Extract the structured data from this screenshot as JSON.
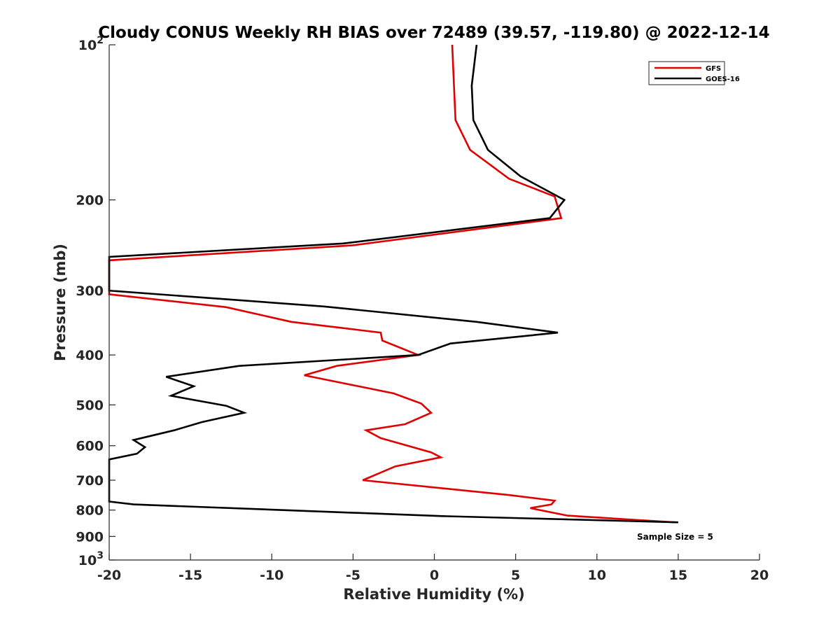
{
  "chart_data": {
    "type": "line",
    "title": "Cloudy CONUS Weekly RH BIAS over 72489 (39.57, -119.80) @ 2022-12-14",
    "xlabel": "Relative Humidity (%)",
    "ylabel": "Pressure (mb)",
    "xlim": [
      -20,
      20
    ],
    "ylim": [
      100,
      1000
    ],
    "y_scale": "log",
    "y_reversed": true,
    "grid": false,
    "legend_position": "top-right",
    "xticks": [
      -20,
      -15,
      -10,
      -5,
      0,
      5,
      10,
      15,
      20
    ],
    "xtick_labels": [
      "-20",
      "-15",
      "-10",
      "-5",
      "0",
      "5",
      "10",
      "15",
      "20"
    ],
    "yticks": [
      100,
      200,
      300,
      400,
      500,
      600,
      700,
      800,
      900,
      1000
    ],
    "ytick_labels": [
      {
        "base": "10",
        "exp": "2"
      },
      {
        "base": "200",
        "exp": ""
      },
      {
        "base": "300",
        "exp": ""
      },
      {
        "base": "400",
        "exp": ""
      },
      {
        "base": "500",
        "exp": ""
      },
      {
        "base": "600",
        "exp": ""
      },
      {
        "base": "700",
        "exp": ""
      },
      {
        "base": "800",
        "exp": ""
      },
      {
        "base": "900",
        "exp": ""
      },
      {
        "base": "10",
        "exp": "3"
      }
    ],
    "annotation": "Sample Size = 5",
    "series": [
      {
        "name": "GFS",
        "color": "#e00000",
        "points": [
          [
            1.1,
            100
          ],
          [
            1.3,
            140
          ],
          [
            2.2,
            160
          ],
          [
            4.6,
            182
          ],
          [
            7.4,
            197
          ],
          [
            7.8,
            217
          ],
          [
            -5.0,
            245
          ],
          [
            -20.0,
            262
          ],
          [
            -20.0,
            305
          ],
          [
            -12.8,
            323
          ],
          [
            -8.8,
            345
          ],
          [
            -3.3,
            362
          ],
          [
            -3.2,
            375
          ],
          [
            -1.0,
            400
          ],
          [
            -6.0,
            420
          ],
          [
            -8.0,
            438
          ],
          [
            -2.5,
            475
          ],
          [
            -0.8,
            497
          ],
          [
            -0.2,
            518
          ],
          [
            -1.8,
            545
          ],
          [
            -4.2,
            560
          ],
          [
            -3.3,
            580
          ],
          [
            -0.2,
            618
          ],
          [
            0.4,
            632
          ],
          [
            -2.4,
            658
          ],
          [
            -4.4,
            700
          ],
          [
            4.6,
            748
          ],
          [
            7.4,
            767
          ],
          [
            7.2,
            780
          ],
          [
            5.9,
            793
          ],
          [
            8.2,
            820
          ],
          [
            14.8,
            845
          ]
        ]
      },
      {
        "name": "GOES-16",
        "color": "#000000",
        "points": [
          [
            2.6,
            100
          ],
          [
            2.3,
            120
          ],
          [
            2.4,
            140
          ],
          [
            3.3,
            160
          ],
          [
            5.3,
            180
          ],
          [
            8.0,
            200
          ],
          [
            7.1,
            217
          ],
          [
            -5.6,
            243
          ],
          [
            -20.0,
            258
          ],
          [
            -20.0,
            300
          ],
          [
            -6.8,
            322
          ],
          [
            2.6,
            345
          ],
          [
            7.6,
            362
          ],
          [
            1.0,
            380
          ],
          [
            -1.0,
            400
          ],
          [
            -12.0,
            420
          ],
          [
            -16.5,
            441
          ],
          [
            -14.8,
            460
          ],
          [
            -16.2,
            480
          ],
          [
            -12.8,
            502
          ],
          [
            -11.7,
            518
          ],
          [
            -14.3,
            540
          ],
          [
            -16.0,
            560
          ],
          [
            -18.5,
            585
          ],
          [
            -17.8,
            604
          ],
          [
            -18.3,
            622
          ],
          [
            -20.0,
            638
          ],
          [
            -20.0,
            770
          ],
          [
            -18.5,
            780
          ],
          [
            0.5,
            822
          ],
          [
            15.0,
            845
          ]
        ]
      }
    ]
  }
}
